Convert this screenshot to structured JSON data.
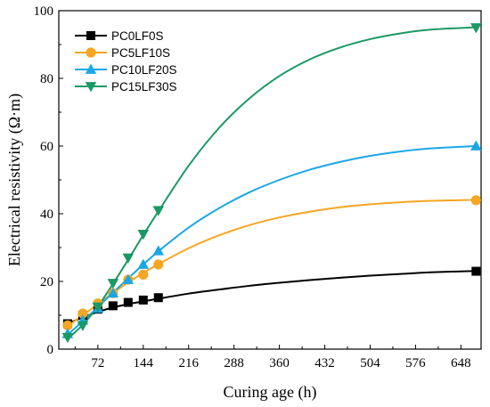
{
  "chart_data": {
    "type": "line",
    "xlabel": "Curing age (h)",
    "ylabel": "Electrical resistivity (Ω·m)",
    "xlim": [
      10,
      680
    ],
    "ylim": [
      0,
      100
    ],
    "xticks": [
      72,
      144,
      216,
      288,
      360,
      432,
      504,
      576,
      648
    ],
    "yticks": [
      0,
      20,
      40,
      60,
      80,
      100
    ],
    "legend_position": "top-left",
    "grid": false,
    "series": [
      {
        "name": "PC0LF0S",
        "color": "#000000",
        "marker": "square",
        "x": [
          24,
          48,
          72,
          96,
          120,
          144,
          168,
          672
        ],
        "y": [
          7.5,
          10.0,
          11.8,
          12.8,
          13.8,
          14.5,
          15.2,
          23.0
        ],
        "fit": [
          7.5,
          9.4,
          11.0,
          12.3,
          13.3,
          14.1,
          14.9,
          16.4,
          17.6,
          18.7,
          19.6,
          20.4,
          21.1,
          21.7,
          22.2,
          22.7,
          23.1
        ]
      },
      {
        "name": "PC5LF10S",
        "color": "#f5a623",
        "marker": "circle",
        "x": [
          24,
          48,
          72,
          96,
          120,
          144,
          168,
          672
        ],
        "y": [
          7.0,
          10.5,
          13.5,
          16.5,
          20.5,
          22.0,
          25.0,
          44.0
        ],
        "fit": [
          6.8,
          10.0,
          13.3,
          16.6,
          19.7,
          22.5,
          25.1,
          29.8,
          33.6,
          36.6,
          38.9,
          40.6,
          41.9,
          42.8,
          43.4,
          43.8,
          44.1
        ]
      },
      {
        "name": "PC10LF20S",
        "color": "#1aa7e6",
        "marker": "triangle-up",
        "x": [
          24,
          48,
          72,
          96,
          120,
          144,
          168,
          672
        ],
        "y": [
          4.5,
          8.5,
          12.0,
          16.5,
          20.5,
          25.0,
          29.0,
          60.0
        ],
        "fit": [
          4.3,
          8.2,
          12.4,
          16.7,
          20.9,
          25.0,
          28.9,
          35.9,
          41.6,
          46.3,
          50.0,
          53.0,
          55.3,
          57.1,
          58.4,
          59.3,
          60.0
        ]
      },
      {
        "name": "PC15LF30S",
        "color": "#1a9964",
        "marker": "triangle-down",
        "x": [
          24,
          48,
          72,
          96,
          120,
          144,
          168,
          672
        ],
        "y": [
          3.5,
          7.0,
          12.5,
          19.5,
          27.0,
          34.0,
          41.0,
          95.0
        ],
        "fit": [
          3.0,
          7.2,
          12.6,
          19.3,
          26.4,
          33.7,
          40.7,
          54.2,
          65.3,
          74.0,
          80.7,
          85.6,
          89.1,
          91.6,
          93.3,
          94.4,
          95.1
        ]
      }
    ],
    "fit_x": [
      24,
      48,
      72,
      96,
      120,
      144,
      168,
      216,
      264,
      312,
      360,
      408,
      456,
      504,
      552,
      600,
      672
    ]
  }
}
